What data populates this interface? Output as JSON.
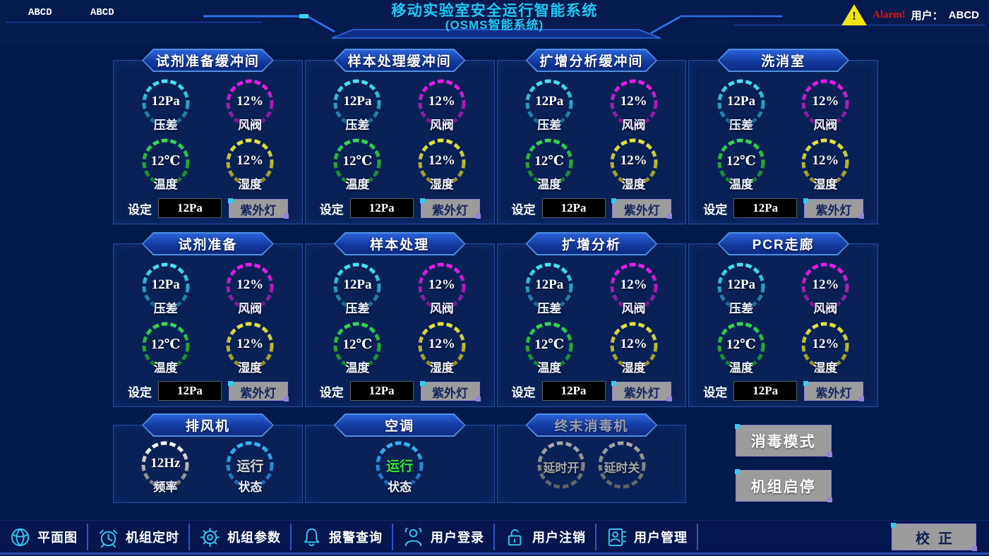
{
  "colors": {
    "page_bg": "#02194b",
    "panel_bg": "#0a2157",
    "panel_border": "#2c4da0",
    "banner_fill_top": "#2a62d8",
    "banner_fill_bottom": "#0b2b80",
    "banner_edge": "#4f8fe0",
    "title_cyan": "#1fc9f2",
    "icon_cyan": "#35c8f0",
    "alarm_red": "#e01212",
    "warn_yellow": "#f2e40e",
    "button_gray": "#9c9c9c",
    "button_text_dark": "#13255c",
    "toolbar_sep_blue": "#2a55c8"
  },
  "rings": {
    "cyan": [
      "#45e8f8",
      "#146090"
    ],
    "magenta": [
      "#ee1cee",
      "#701a8c"
    ],
    "green": [
      "#32dc4a",
      "#157828"
    ],
    "yellow": [
      "#e6e63e",
      "#8c8c20"
    ],
    "white": [
      "#ffffff",
      "#6f6f6f"
    ],
    "blue": [
      "#38b8f8",
      "#1860b0"
    ],
    "gray": [
      "#a8a8a8",
      "#5f5f5f"
    ]
  },
  "header": {
    "nav_labels": [
      "ABCD",
      "ABCD"
    ],
    "title": "移动实验室安全运行智能系统",
    "subtitle": "(OSMS智能系统)",
    "alarm_text": "Alarm!",
    "user_label": "用户：",
    "user_value": "ABCD"
  },
  "rooms": [
    {
      "name": "试剂准备缓冲间",
      "gauges": [
        {
          "value": "12Pa",
          "label": "压差",
          "ring": "cyan",
          "value_color": "#ffffff"
        },
        {
          "value": "12%",
          "label": "风阀",
          "ring": "magenta",
          "value_color": "#ffffff"
        },
        {
          "value": "12℃",
          "label": "温度",
          "ring": "green",
          "value_color": "#ffffff"
        },
        {
          "value": "12%",
          "label": "湿度",
          "ring": "yellow",
          "value_color": "#ffffff"
        }
      ],
      "set_label": "设定",
      "set_value": "12Pa",
      "uv_button": "紫外灯"
    },
    {
      "name": "样本处理缓冲间",
      "gauges": [
        {
          "value": "12Pa",
          "label": "压差",
          "ring": "cyan",
          "value_color": "#ffffff"
        },
        {
          "value": "12%",
          "label": "风阀",
          "ring": "magenta",
          "value_color": "#ffffff"
        },
        {
          "value": "12℃",
          "label": "温度",
          "ring": "green",
          "value_color": "#ffffff"
        },
        {
          "value": "12%",
          "label": "湿度",
          "ring": "yellow",
          "value_color": "#ffffff"
        }
      ],
      "set_label": "设定",
      "set_value": "12Pa",
      "uv_button": "紫外灯"
    },
    {
      "name": "扩增分析缓冲间",
      "gauges": [
        {
          "value": "12Pa",
          "label": "压差",
          "ring": "cyan",
          "value_color": "#ffffff"
        },
        {
          "value": "12%",
          "label": "风阀",
          "ring": "magenta",
          "value_color": "#ffffff"
        },
        {
          "value": "12℃",
          "label": "温度",
          "ring": "green",
          "value_color": "#ffffff"
        },
        {
          "value": "12%",
          "label": "湿度",
          "ring": "yellow",
          "value_color": "#ffffff"
        }
      ],
      "set_label": "设定",
      "set_value": "12Pa",
      "uv_button": "紫外灯"
    },
    {
      "name": "洗消室",
      "gauges": [
        {
          "value": "12Pa",
          "label": "压差",
          "ring": "cyan",
          "value_color": "#ffffff"
        },
        {
          "value": "12%",
          "label": "风阀",
          "ring": "magenta",
          "value_color": "#ffffff"
        },
        {
          "value": "12℃",
          "label": "温度",
          "ring": "green",
          "value_color": "#ffffff"
        },
        {
          "value": "12%",
          "label": "湿度",
          "ring": "yellow",
          "value_color": "#ffffff"
        }
      ],
      "set_label": "设定",
      "set_value": "12Pa",
      "uv_button": "紫外灯"
    },
    {
      "name": "试剂准备",
      "gauges": [
        {
          "value": "12Pa",
          "label": "压差",
          "ring": "cyan",
          "value_color": "#ffffff"
        },
        {
          "value": "12%",
          "label": "风阀",
          "ring": "magenta",
          "value_color": "#ffffff"
        },
        {
          "value": "12℃",
          "label": "温度",
          "ring": "green",
          "value_color": "#ffffff"
        },
        {
          "value": "12%",
          "label": "湿度",
          "ring": "yellow",
          "value_color": "#ffffff"
        }
      ],
      "set_label": "设定",
      "set_value": "12Pa",
      "uv_button": "紫外灯"
    },
    {
      "name": "样本处理",
      "gauges": [
        {
          "value": "12Pa",
          "label": "压差",
          "ring": "cyan",
          "value_color": "#ffffff"
        },
        {
          "value": "12%",
          "label": "风阀",
          "ring": "magenta",
          "value_color": "#ffffff"
        },
        {
          "value": "12℃",
          "label": "温度",
          "ring": "green",
          "value_color": "#ffffff"
        },
        {
          "value": "12%",
          "label": "湿度",
          "ring": "yellow",
          "value_color": "#ffffff"
        }
      ],
      "set_label": "设定",
      "set_value": "12Pa",
      "uv_button": "紫外灯"
    },
    {
      "name": "扩增分析",
      "gauges": [
        {
          "value": "12Pa",
          "label": "压差",
          "ring": "cyan",
          "value_color": "#ffffff"
        },
        {
          "value": "12%",
          "label": "风阀",
          "ring": "magenta",
          "value_color": "#ffffff"
        },
        {
          "value": "12℃",
          "label": "温度",
          "ring": "green",
          "value_color": "#ffffff"
        },
        {
          "value": "12%",
          "label": "湿度",
          "ring": "yellow",
          "value_color": "#ffffff"
        }
      ],
      "set_label": "设定",
      "set_value": "12Pa",
      "uv_button": "紫外灯"
    },
    {
      "name": "PCR走廊",
      "gauges": [
        {
          "value": "12Pa",
          "label": "压差",
          "ring": "cyan",
          "value_color": "#ffffff"
        },
        {
          "value": "12%",
          "label": "风阀",
          "ring": "magenta",
          "value_color": "#ffffff"
        },
        {
          "value": "12℃",
          "label": "温度",
          "ring": "green",
          "value_color": "#ffffff"
        },
        {
          "value": "12%",
          "label": "湿度",
          "ring": "yellow",
          "value_color": "#ffffff"
        }
      ],
      "set_label": "设定",
      "set_value": "12Pa",
      "uv_button": "紫外灯"
    }
  ],
  "equipment": [
    {
      "name": "排风机",
      "disabled": false,
      "tight": false,
      "gauges": [
        {
          "value": "12Hz",
          "label": "频率",
          "ring": "white",
          "value_color": "#ffffff"
        },
        {
          "value": "运行",
          "label": "状态",
          "ring": "blue",
          "value_color": "#d6d6d6"
        }
      ]
    },
    {
      "name": "空调",
      "disabled": false,
      "tight": false,
      "gauges": [
        {
          "value": "运行",
          "label": "状态",
          "ring": "blue",
          "value_color": "#35e83c"
        }
      ]
    },
    {
      "name": "终末消毒机",
      "disabled": true,
      "tight": true,
      "gauges": [
        {
          "value": "延时开",
          "label": "",
          "ring": "gray",
          "value_color": "#a8a8a8"
        },
        {
          "value": "延时关",
          "label": "",
          "ring": "gray",
          "value_color": "#a8a8a8"
        }
      ]
    }
  ],
  "actions": [
    {
      "label": "消毒模式"
    },
    {
      "label": "机组启停"
    }
  ],
  "toolbar": {
    "items": [
      {
        "icon": "floorplan-icon",
        "label": "平面图"
      },
      {
        "icon": "timer-icon",
        "label": "机组定时"
      },
      {
        "icon": "gear-icon",
        "label": "机组参数"
      },
      {
        "icon": "bell-icon",
        "label": "报警查询"
      },
      {
        "icon": "user-login-icon",
        "label": "用户登录"
      },
      {
        "icon": "user-logout-icon",
        "label": "用户注销"
      },
      {
        "icon": "user-manage-icon",
        "label": "用户管理"
      }
    ],
    "calibrate_label": "校正"
  }
}
